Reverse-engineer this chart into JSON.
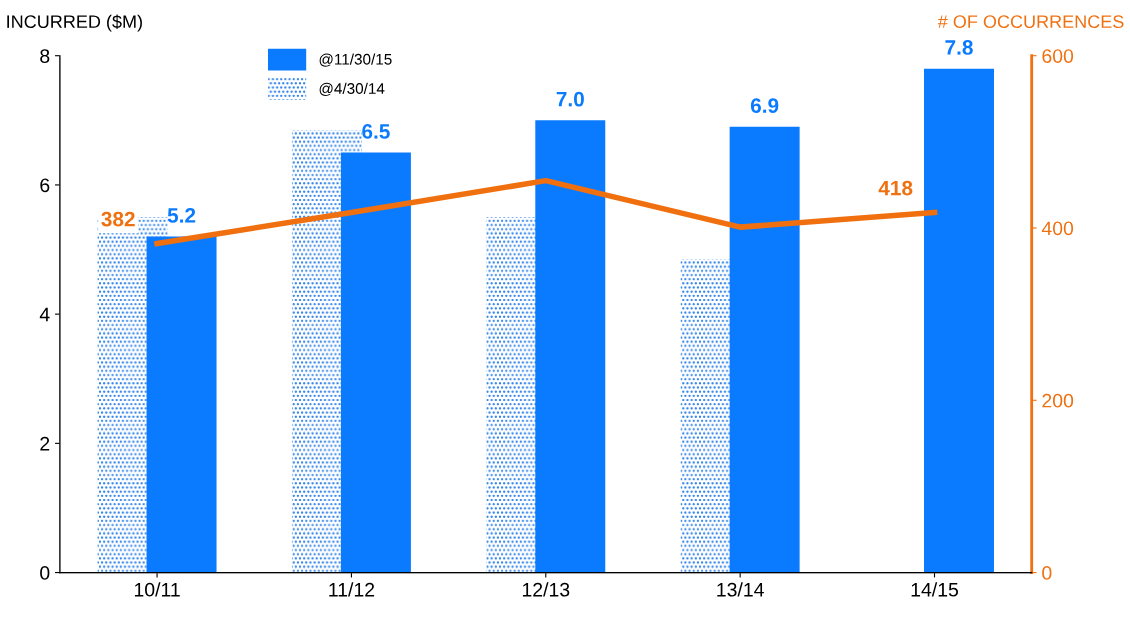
{
  "chart_data": {
    "type": "bar",
    "ylabel": "INCURRED ($M)",
    "y2label": "# OF OCCURRENCES",
    "categories": [
      "10/11",
      "11/12",
      "12/13",
      "13/14",
      "14/15"
    ],
    "series": [
      {
        "name": "@4/30/14",
        "color": "#1a75e8",
        "values": [
          5.5,
          6.85,
          5.5,
          4.85,
          null
        ]
      },
      {
        "name": "@11/30/15",
        "color": "#0a7bff",
        "values": [
          5.2,
          6.5,
          7.0,
          6.9,
          7.8
        ],
        "value_labels": [
          "5.2",
          "6.5",
          "7.0",
          "6.9",
          "7.8"
        ]
      },
      {
        "type": "line",
        "axis": "y2",
        "color": "#f07010",
        "values": [
          382,
          418,
          455,
          401,
          418
        ],
        "value_labels": [
          "382",
          null,
          null,
          null,
          "418"
        ]
      }
    ],
    "ylim": [
      0,
      8
    ],
    "yticks": [
      0,
      2,
      4,
      6,
      8
    ],
    "y2lim": [
      0,
      600
    ],
    "y2ticks": [
      0,
      200,
      400,
      600
    ],
    "grid": false,
    "legend": "top left",
    "marker": "none",
    "line_style": "solid"
  }
}
